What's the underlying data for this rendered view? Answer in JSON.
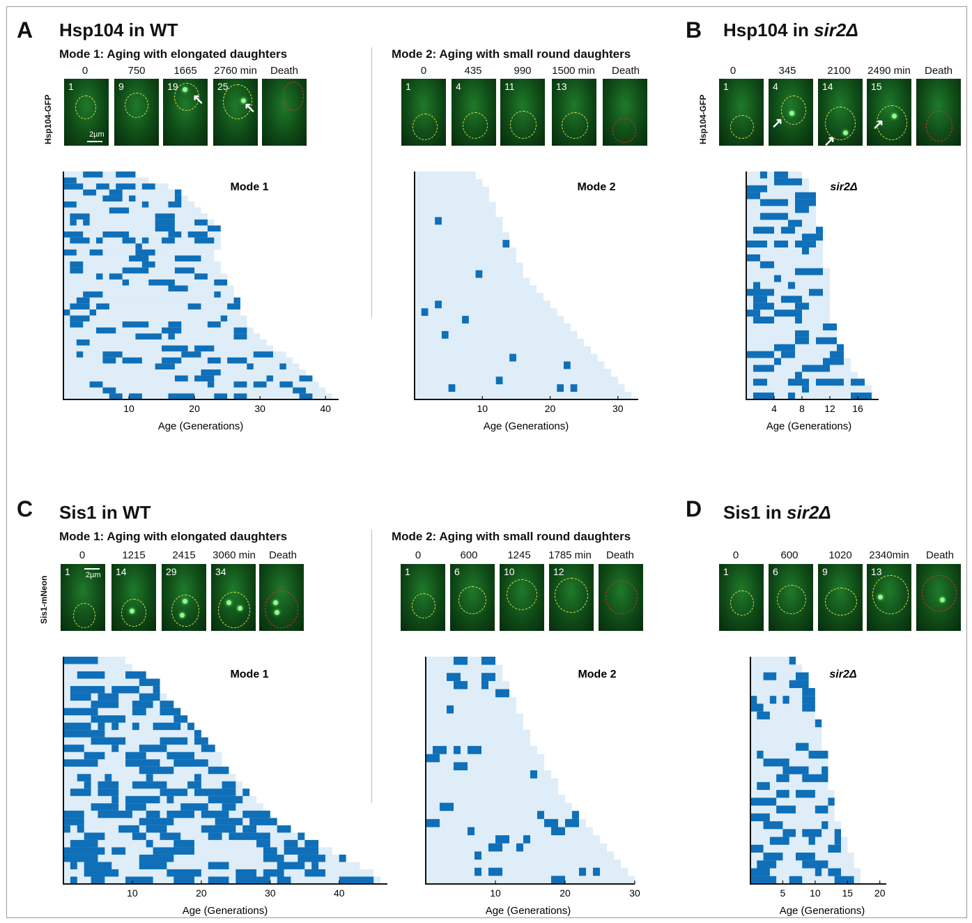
{
  "figure": {
    "panels": [
      {
        "letter": "A",
        "title": "Hsp104 in WT",
        "ylabel": "Hsp104-GFP",
        "modes": [
          {
            "subtitle": "Mode 1: Aging with elongated daughters",
            "timepoints": [
              "0",
              "750",
              "1665",
              "2760 min",
              "Death"
            ],
            "generations": [
              "1",
              "9",
              "19",
              "25",
              ""
            ],
            "scale_bar": "2µm",
            "chart_title": "Mode 1",
            "xlabel": "Age (Generations)",
            "xticks": [
              "10",
              "20",
              "30",
              "40"
            ]
          },
          {
            "subtitle": "Mode 2: Aging with small round daughters",
            "timepoints": [
              "0",
              "435",
              "990",
              "1500 min",
              "Death"
            ],
            "generations": [
              "1",
              "4",
              "11",
              "13",
              ""
            ],
            "chart_title": "Mode 2",
            "xlabel": "Age (Generations)",
            "xticks": [
              "10",
              "20",
              "30"
            ]
          }
        ]
      },
      {
        "letter": "B",
        "title_prefix": "Hsp104 in ",
        "title_italic": "sir2Δ",
        "ylabel": "Hsp104-GFP",
        "timepoints": [
          "0",
          "345",
          "2100",
          "2490 min",
          "Death"
        ],
        "generations": [
          "1",
          "4",
          "14",
          "15",
          ""
        ],
        "chart_title": "sir2Δ",
        "xlabel": "Age (Generations)",
        "xticks": [
          "4",
          "8",
          "12",
          "16"
        ]
      },
      {
        "letter": "C",
        "title": "Sis1 in WT",
        "ylabel": "Sis1-mNeon",
        "modes": [
          {
            "subtitle": "Mode 1: Aging with elongated daughters",
            "timepoints": [
              "0",
              "1215",
              "2415",
              "3060 min",
              "Death"
            ],
            "generations": [
              "1",
              "14",
              "29",
              "34",
              ""
            ],
            "scale_bar": "2µm",
            "chart_title": "Mode 1",
            "xlabel": "Age (Generations)",
            "xticks": [
              "10",
              "20",
              "30",
              "40"
            ]
          },
          {
            "subtitle": "Mode 2: Aging with small round daughters",
            "timepoints": [
              "0",
              "600",
              "1245",
              "1785 min",
              "Death"
            ],
            "generations": [
              "1",
              "6",
              "10",
              "12",
              ""
            ],
            "chart_title": "Mode 2",
            "xlabel": "Age (Generations)",
            "xticks": [
              "10",
              "20",
              "30"
            ]
          }
        ]
      },
      {
        "letter": "D",
        "title_prefix": "Sis1 in ",
        "title_italic": "sir2Δ",
        "timepoints": [
          "0",
          "600",
          "1020",
          "2340min",
          "Death"
        ],
        "generations": [
          "1",
          "6",
          "9",
          "13",
          ""
        ],
        "chart_title": "sir2Δ",
        "xlabel": "Age (Generations)",
        "xticks": [
          "5",
          "10",
          "15",
          "20"
        ]
      }
    ],
    "colors": {
      "lifespan": "#deedf7",
      "aggregate": "#0f6fb8",
      "alive_outline": "#e8e24a",
      "dead_outline": "#d9302a"
    }
  },
  "chart_data": [
    {
      "id": "A-mode1",
      "type": "heatmap",
      "title": "Mode 1",
      "xlabel": "Age (Generations)",
      "xlim": [
        0,
        42
      ],
      "xticks": [
        10,
        20,
        30,
        40
      ],
      "lifespans": [
        11,
        13,
        16,
        18,
        19,
        20,
        21,
        22,
        23,
        24,
        24,
        24,
        24,
        23,
        23,
        24,
        24,
        25,
        25,
        26,
        26,
        27,
        27,
        27,
        28,
        28,
        29,
        30,
        31,
        32,
        34,
        35,
        36,
        37,
        38,
        39,
        40,
        41
      ]
    },
    {
      "id": "A-mode2",
      "type": "heatmap",
      "title": "Mode 2",
      "xlabel": "Age (Generations)",
      "xlim": [
        0,
        33
      ],
      "xticks": [
        10,
        20,
        30
      ],
      "lifespans": [
        9,
        10,
        11,
        11,
        12,
        12,
        13,
        13,
        14,
        14,
        15,
        15,
        16,
        16,
        17,
        18,
        19,
        20,
        21,
        22,
        23,
        24,
        25,
        26,
        27,
        28,
        29,
        30,
        31,
        32
      ]
    },
    {
      "id": "B",
      "type": "heatmap",
      "title": "sir2Δ",
      "xlabel": "Age (Generations)",
      "xlim": [
        0,
        19
      ],
      "xticks": [
        4,
        8,
        12,
        16
      ],
      "lifespans": [
        8,
        9,
        9,
        10,
        10,
        10,
        10,
        10,
        11,
        11,
        11,
        11,
        11,
        11,
        12,
        12,
        12,
        12,
        12,
        12,
        12,
        12,
        13,
        13,
        13,
        14,
        14,
        15,
        15,
        16,
        17,
        18,
        18
      ]
    },
    {
      "id": "C-mode1",
      "type": "heatmap",
      "title": "Mode 1",
      "xlabel": "Age (Generations)",
      "xlim": [
        0,
        47
      ],
      "xticks": [
        10,
        20,
        30,
        40
      ],
      "lifespans": [
        9,
        10,
        12,
        14,
        14,
        15,
        16,
        17,
        18,
        19,
        20,
        21,
        22,
        23,
        23,
        24,
        25,
        26,
        27,
        28,
        29,
        30,
        31,
        33,
        35,
        37,
        39,
        41,
        43,
        45,
        46
      ]
    },
    {
      "id": "C-mode2",
      "type": "heatmap",
      "title": "Mode 2",
      "xlabel": "Age (Generations)",
      "xlim": [
        0,
        30
      ],
      "xticks": [
        10,
        20,
        30
      ],
      "lifespans": [
        10,
        11,
        11,
        12,
        12,
        13,
        13,
        14,
        14,
        15,
        15,
        16,
        17,
        17,
        18,
        19,
        19,
        20,
        21,
        22,
        23,
        24,
        25,
        26,
        27,
        28,
        29,
        30
      ]
    },
    {
      "id": "D",
      "type": "heatmap",
      "title": "sir2Δ",
      "xlabel": "Age (Generations)",
      "xlim": [
        0,
        21
      ],
      "xticks": [
        5,
        10,
        15,
        20
      ],
      "lifespans": [
        7,
        8,
        9,
        9,
        10,
        10,
        10,
        10,
        11,
        11,
        11,
        11,
        12,
        12,
        12,
        12,
        12,
        13,
        13,
        13,
        13,
        14,
        14,
        15,
        15,
        16,
        16,
        17,
        17
      ]
    }
  ]
}
